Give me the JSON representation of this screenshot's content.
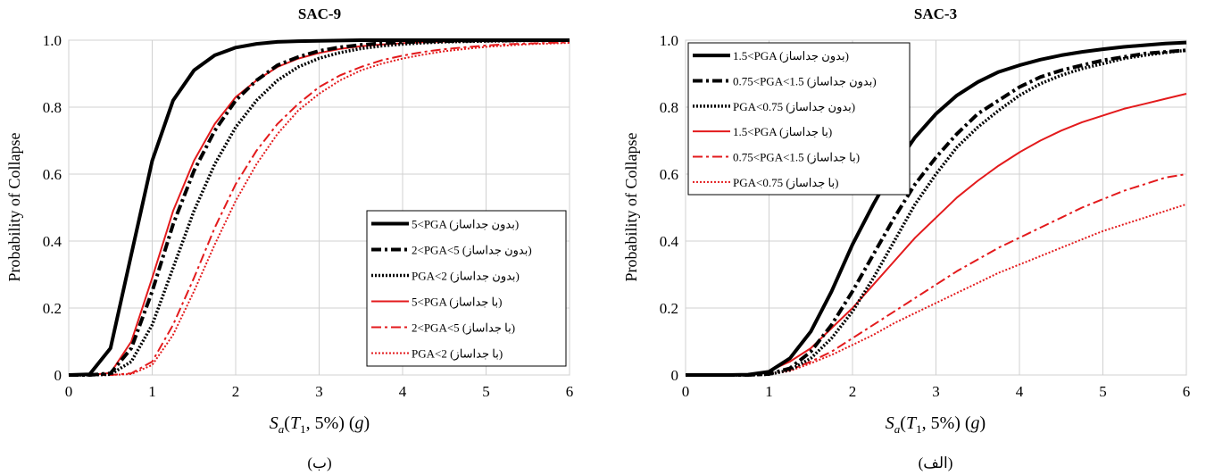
{
  "chart_data": [
    {
      "type": "line",
      "title": "SAC-9",
      "caption": "(ب)",
      "xlabel": "S_a(T_1, 5%) (g)",
      "ylabel": "Probability of Collapse",
      "xlim": [
        0,
        6
      ],
      "ylim": [
        0,
        1
      ],
      "x_ticks": [
        "0",
        "1",
        "2",
        "3",
        "4",
        "5",
        "6"
      ],
      "y_ticks": [
        "0",
        "0.2",
        "0.4",
        "0.6",
        "0.8",
        "1.0"
      ],
      "grid": true,
      "legend_position": "lower-right",
      "x": [
        0,
        0.25,
        0.5,
        0.75,
        1,
        1.25,
        1.5,
        1.75,
        2,
        2.25,
        2.5,
        2.75,
        3,
        3.25,
        3.5,
        3.75,
        4,
        4.25,
        4.5,
        4.75,
        5,
        5.25,
        5.5,
        5.75,
        6
      ],
      "series": [
        {
          "name": "5<PGA (بدون جداساز)",
          "color": "#000000",
          "style": "solid",
          "width": 4,
          "values": [
            0,
            0.002,
            0.08,
            0.36,
            0.64,
            0.82,
            0.91,
            0.955,
            0.978,
            0.989,
            0.995,
            0.997,
            0.998,
            0.999,
            1,
            1,
            1,
            1,
            1,
            1,
            1,
            1,
            1,
            1,
            1
          ]
        },
        {
          "name": "2<PGA<5 (بدون جداساز)",
          "color": "#000000",
          "style": "dashdot",
          "width": 4,
          "values": [
            0,
            0,
            0.005,
            0.08,
            0.25,
            0.45,
            0.61,
            0.73,
            0.82,
            0.88,
            0.925,
            0.95,
            0.968,
            0.979,
            0.986,
            0.991,
            0.994,
            0.996,
            0.997,
            0.998,
            0.999,
            0.999,
            1,
            1,
            1
          ]
        },
        {
          "name": "PGA<2 (بدون جداساز)",
          "color": "#000000",
          "style": "dotted",
          "width": 3.5,
          "values": [
            0,
            0,
            0.002,
            0.04,
            0.15,
            0.32,
            0.49,
            0.63,
            0.74,
            0.82,
            0.88,
            0.92,
            0.946,
            0.963,
            0.975,
            0.983,
            0.988,
            0.992,
            0.995,
            0.996,
            0.997,
            0.998,
            0.999,
            0.999,
            1
          ]
        },
        {
          "name": "5<PGA (با جداساز)",
          "color": "#e31a1c",
          "style": "solid",
          "width": 2,
          "values": [
            0,
            0,
            0.006,
            0.1,
            0.29,
            0.49,
            0.64,
            0.75,
            0.83,
            0.88,
            0.92,
            0.945,
            0.962,
            0.974,
            0.982,
            0.987,
            0.991,
            0.994,
            0.996,
            0.997,
            0.998,
            0.999,
            0.999,
            1,
            1
          ]
        },
        {
          "name": "2<PGA<5 (با جداساز)",
          "color": "#e31a1c",
          "style": "dashdot",
          "width": 2,
          "values": [
            0,
            0,
            0,
            0.005,
            0.04,
            0.15,
            0.29,
            0.44,
            0.57,
            0.67,
            0.75,
            0.81,
            0.86,
            0.895,
            0.92,
            0.94,
            0.954,
            0.965,
            0.973,
            0.979,
            0.984,
            0.988,
            0.99,
            0.992,
            0.994
          ]
        },
        {
          "name": "PGA<2 (با جداساز)",
          "color": "#e31a1c",
          "style": "dotted",
          "width": 2,
          "values": [
            0,
            0,
            0,
            0.003,
            0.03,
            0.12,
            0.25,
            0.39,
            0.52,
            0.63,
            0.72,
            0.79,
            0.84,
            0.88,
            0.91,
            0.93,
            0.945,
            0.957,
            0.967,
            0.974,
            0.98,
            0.984,
            0.988,
            0.99,
            0.992
          ]
        }
      ]
    },
    {
      "type": "line",
      "title": "SAC-3",
      "caption": "(الف)",
      "xlabel": "S_a(T_1, 5%) (g)",
      "ylabel": "Probability of Collapse",
      "xlim": [
        0,
        6
      ],
      "ylim": [
        0,
        1
      ],
      "x_ticks": [
        "0",
        "1",
        "2",
        "3",
        "4",
        "5",
        "6"
      ],
      "y_ticks": [
        "0",
        "0.2",
        "0.4",
        "0.6",
        "0.8",
        "1.0"
      ],
      "grid": true,
      "legend_position": "upper-left",
      "x": [
        0,
        0.25,
        0.5,
        0.75,
        1,
        1.25,
        1.5,
        1.75,
        2,
        2.25,
        2.5,
        2.75,
        3,
        3.25,
        3.5,
        3.75,
        4,
        4.25,
        4.5,
        4.75,
        5,
        5.25,
        5.5,
        5.75,
        6
      ],
      "series": [
        {
          "name": "1.5<PGA (بدون جداساز)",
          "color": "#000000",
          "style": "solid",
          "width": 4,
          "values": [
            0,
            0,
            0,
            0.001,
            0.01,
            0.05,
            0.13,
            0.25,
            0.39,
            0.51,
            0.62,
            0.71,
            0.78,
            0.835,
            0.875,
            0.905,
            0.925,
            0.942,
            0.955,
            0.965,
            0.973,
            0.98,
            0.985,
            0.99,
            0.993
          ]
        },
        {
          "name": "0.75<PGA<1.5 (بدون جداساز)",
          "color": "#000000",
          "style": "dashdot",
          "width": 4,
          "values": [
            0,
            0,
            0,
            0,
            0.003,
            0.02,
            0.07,
            0.15,
            0.25,
            0.36,
            0.47,
            0.57,
            0.65,
            0.72,
            0.78,
            0.82,
            0.86,
            0.89,
            0.91,
            0.925,
            0.94,
            0.95,
            0.96,
            0.965,
            0.97
          ]
        },
        {
          "name": "PGA<0.75 (بدون جداساز)",
          "color": "#000000",
          "style": "dotted",
          "width": 3.5,
          "values": [
            0,
            0,
            0,
            0,
            0.002,
            0.015,
            0.05,
            0.11,
            0.19,
            0.29,
            0.4,
            0.51,
            0.6,
            0.68,
            0.74,
            0.79,
            0.835,
            0.87,
            0.895,
            0.915,
            0.93,
            0.945,
            0.955,
            0.963,
            0.97
          ]
        },
        {
          "name": "1.5<PGA (با جداساز)",
          "color": "#e31a1c",
          "style": "solid",
          "width": 2,
          "values": [
            0,
            0,
            0,
            0.002,
            0.012,
            0.04,
            0.08,
            0.14,
            0.2,
            0.27,
            0.34,
            0.41,
            0.47,
            0.53,
            0.58,
            0.625,
            0.665,
            0.7,
            0.73,
            0.755,
            0.775,
            0.795,
            0.81,
            0.825,
            0.84
          ]
        },
        {
          "name": "0.75<PGA<1.5 (با جداساز)",
          "color": "#e31a1c",
          "style": "dashdot",
          "width": 2,
          "values": [
            0,
            0,
            0,
            0,
            0.003,
            0.015,
            0.04,
            0.07,
            0.11,
            0.15,
            0.19,
            0.23,
            0.27,
            0.31,
            0.345,
            0.38,
            0.41,
            0.44,
            0.47,
            0.5,
            0.525,
            0.55,
            0.57,
            0.59,
            0.6
          ]
        },
        {
          "name": "PGA<0.75 (با جداساز)",
          "color": "#e31a1c",
          "style": "dotted",
          "width": 2,
          "values": [
            0,
            0,
            0,
            0,
            0.002,
            0.012,
            0.035,
            0.06,
            0.09,
            0.12,
            0.155,
            0.185,
            0.215,
            0.245,
            0.275,
            0.305,
            0.33,
            0.355,
            0.38,
            0.405,
            0.43,
            0.45,
            0.47,
            0.49,
            0.51
          ]
        }
      ]
    }
  ]
}
